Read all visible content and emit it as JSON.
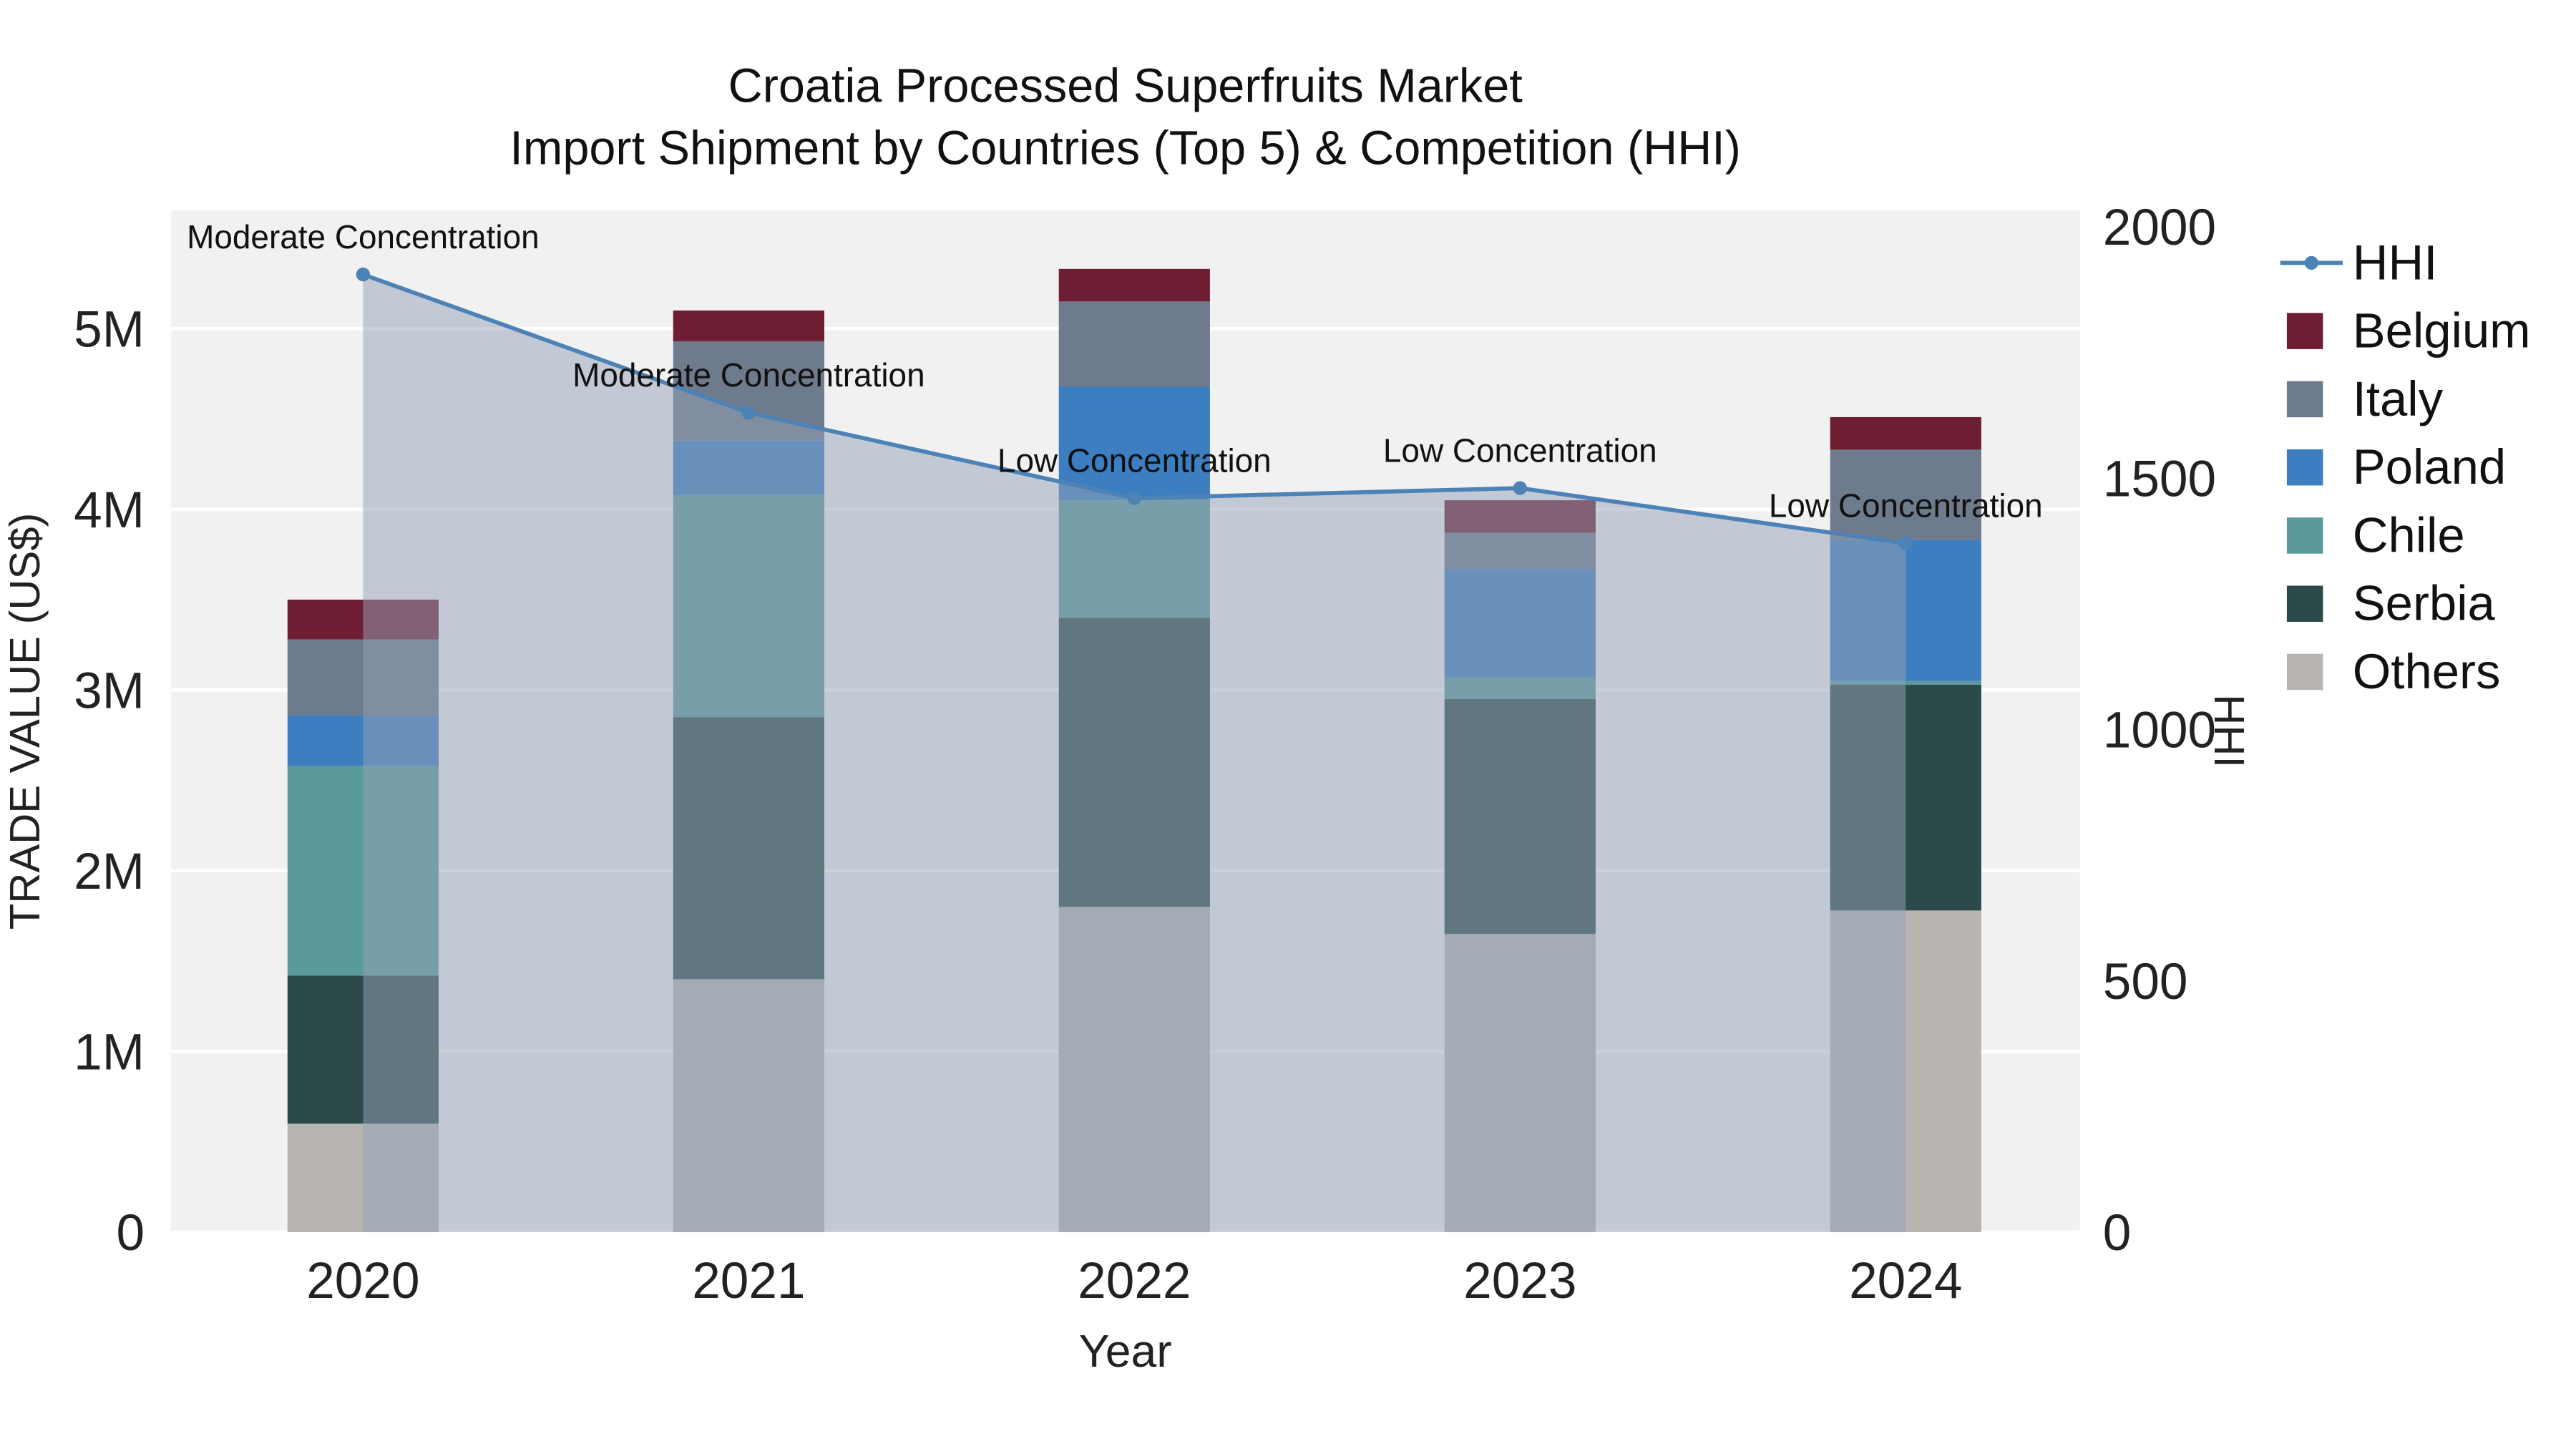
{
  "title": {
    "line1": "Croatia Processed Superfruits Market",
    "line2": "Import Shipment by Countries (Top 5) & Competition (HHI)"
  },
  "axes": {
    "left": {
      "title": "TRADE VALUE (US$)",
      "tick_labels": [
        "0",
        "1M",
        "2M",
        "3M",
        "4M",
        "5M"
      ],
      "tick_values_millions": [
        0,
        1,
        2,
        3,
        4,
        5
      ]
    },
    "right": {
      "title": "HHI",
      "tick_labels": [
        "0",
        "500",
        "1000",
        "1500",
        "2000"
      ],
      "tick_values": [
        0,
        500,
        1000,
        1500,
        2000
      ]
    },
    "x": {
      "title": "Year",
      "categories": [
        "2020",
        "2021",
        "2022",
        "2023",
        "2024"
      ]
    }
  },
  "chart_data": {
    "type": "bar+line",
    "categories": [
      "2020",
      "2021",
      "2022",
      "2023",
      "2024"
    ],
    "bar_values_unit": "millions USD",
    "bar_stack_order": "bottom to top",
    "bar_series": [
      {
        "name": "Others",
        "color": "#b7b4b2",
        "values": [
          0.6,
          1.4,
          1.8,
          1.65,
          1.78
        ]
      },
      {
        "name": "Serbia",
        "color": "#2c4a4a",
        "values": [
          0.82,
          1.45,
          1.6,
          1.3,
          1.25
        ]
      },
      {
        "name": "Chile",
        "color": "#5a9a9c",
        "values": [
          1.16,
          1.23,
          0.65,
          0.12,
          0.02
        ]
      },
      {
        "name": "Poland",
        "color": "#3d7ec1",
        "values": [
          0.28,
          0.3,
          0.63,
          0.6,
          0.78
        ]
      },
      {
        "name": "Italy",
        "color": "#6e7b8d",
        "values": [
          0.42,
          0.55,
          0.47,
          0.2,
          0.5
        ]
      },
      {
        "name": "Belgium",
        "color": "#6e1e33",
        "values": [
          0.22,
          0.17,
          0.18,
          0.18,
          0.18
        ]
      }
    ],
    "bar_totals_millions": [
      3.5,
      5.1,
      5.33,
      4.05,
      4.51
    ],
    "line_series": {
      "name": "HHI",
      "color": "#4c82b6",
      "area_fill": "rgba(148,162,182,0.5)",
      "values": [
        1905,
        1630,
        1460,
        1480,
        1370
      ]
    },
    "annotations": [
      {
        "category": "2020",
        "text": "Moderate Concentration"
      },
      {
        "category": "2021",
        "text": "Moderate Concentration"
      },
      {
        "category": "2022",
        "text": "Low Concentration"
      },
      {
        "category": "2023",
        "text": "Low Concentration"
      },
      {
        "category": "2024",
        "text": "Low Concentration"
      }
    ],
    "ylim_left_millions": [
      0,
      5.65
    ],
    "ylim_right": [
      0,
      2030
    ],
    "grid": "horizontal white lines on light gray plot background",
    "legend_position": "right"
  },
  "legend": {
    "items": [
      {
        "label": "HHI",
        "type": "line",
        "color": "#4c82b6"
      },
      {
        "label": "Belgium",
        "type": "swatch",
        "color": "#6e1e33"
      },
      {
        "label": "Italy",
        "type": "swatch",
        "color": "#6e7b8d"
      },
      {
        "label": "Poland",
        "type": "swatch",
        "color": "#3d7ec1"
      },
      {
        "label": "Chile",
        "type": "swatch",
        "color": "#5a9a9c"
      },
      {
        "label": "Serbia",
        "type": "swatch",
        "color": "#2c4a4a"
      },
      {
        "label": "Others",
        "type": "swatch",
        "color": "#b7b4b2"
      }
    ]
  },
  "colors": {
    "plot_background": "#f1f1f2",
    "gridline": "#ffffff",
    "page_background": "#ffffff"
  }
}
